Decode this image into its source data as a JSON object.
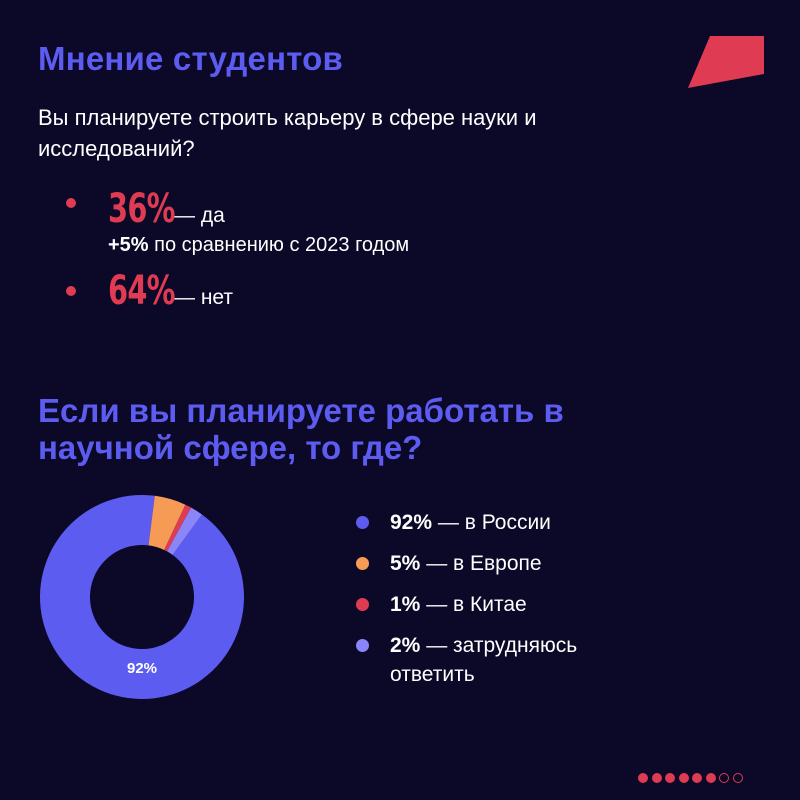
{
  "title": "Мнение студентов",
  "question": "Вы планируете строить карьеру в сфере науки и исследований?",
  "stats": [
    {
      "value": "36%",
      "label": "— да",
      "sub_bold": "+5%",
      "sub_text": " по сравнению с 2023 годом"
    },
    {
      "value": "64%",
      "label": "— нет"
    }
  ],
  "subtitle": "Если вы планируете работать в научной сфере, то где?",
  "chart_data": {
    "type": "pie",
    "categories": [
      "в России",
      "в Европе",
      "в Китае",
      "затрудняюсь ответить"
    ],
    "values": [
      92,
      5,
      1,
      2
    ],
    "colors": [
      "#5d5cf0",
      "#f69b56",
      "#df3b52",
      "#8a86f7"
    ],
    "data_labels": [
      "92%"
    ]
  },
  "legend": [
    {
      "value": "92%",
      "label": " — в России",
      "color": "#5d5cf0"
    },
    {
      "value": "5%",
      "label": " — в Европе",
      "color": "#f69b56"
    },
    {
      "value": "1%",
      "label": " — в Китае",
      "color": "#df3b52"
    },
    {
      "value": "2%",
      "label": " — затрудняюсь ответить",
      "color": "#8a86f7"
    }
  ],
  "pager": {
    "total": 8,
    "active": 6,
    "active_color": "#df3b52"
  },
  "colors": {
    "background": "#0b0828",
    "accent_blue": "#5d5cf0",
    "accent_red": "#df3b52"
  }
}
